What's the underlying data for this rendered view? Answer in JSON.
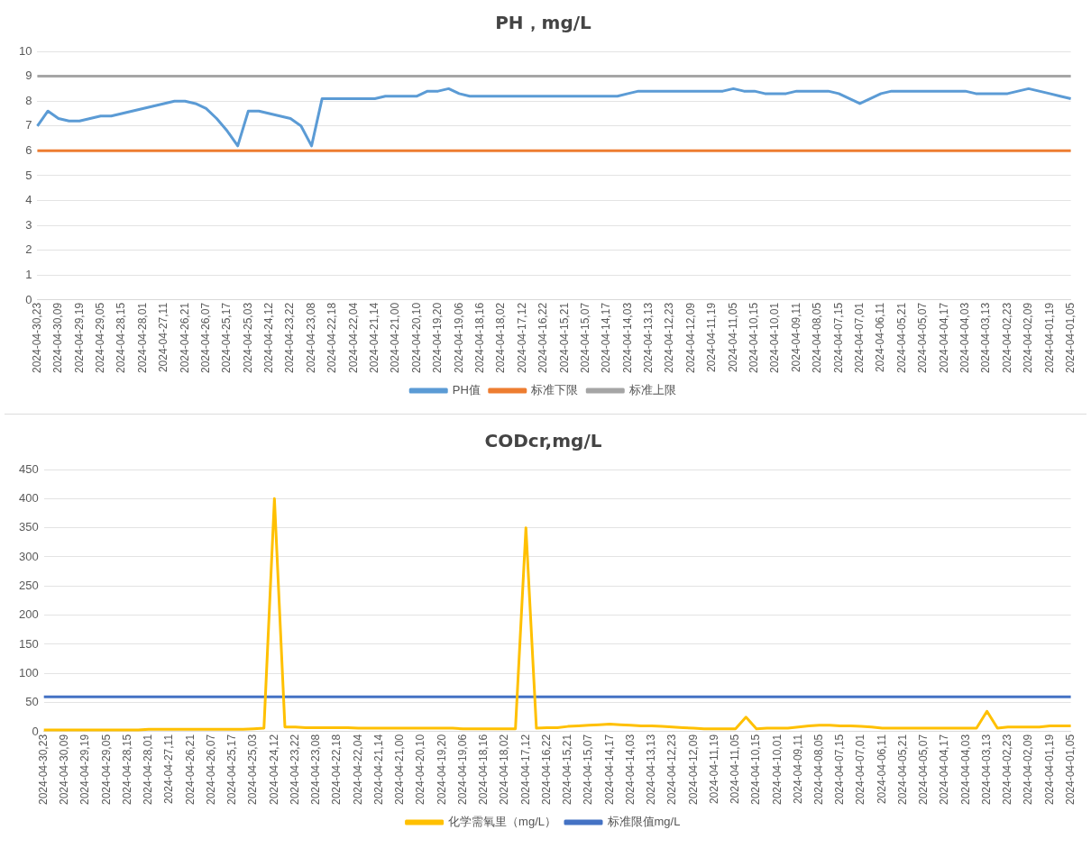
{
  "chart_data": [
    {
      "type": "line",
      "title": "PH，mg/L",
      "categories": [
        "2024-04-30,23",
        null,
        "2024-04-30,09",
        null,
        "2024-04-29,19",
        null,
        "2024-04-29,05",
        null,
        "2024-04-28,15",
        null,
        "2024-04-28,01",
        null,
        "2024-04-27,11",
        null,
        "2024-04-26,21",
        null,
        "2024-04-26,07",
        null,
        "2024-04-25,17",
        null,
        "2024-04-25,03",
        null,
        "2024-04-24,12",
        null,
        "2024-04-23,22",
        null,
        "2024-04-23,08",
        null,
        "2024-04-22,18",
        null,
        "2024-04-22,04",
        null,
        "2024-04-21,14",
        null,
        "2024-04-21,00",
        null,
        "2024-04-20,10",
        null,
        "2024-04-19,20",
        null,
        "2024-04-19,06",
        null,
        "2024-04-18,16",
        null,
        "2024-04-18,02",
        null,
        "2024-04-17,12",
        null,
        "2024-04-16,22",
        null,
        "2024-04-15,21",
        null,
        "2024-04-15,07",
        null,
        "2024-04-14,17",
        null,
        "2024-04-14,03",
        null,
        "2024-04-13,13",
        null,
        "2024-04-12,23",
        null,
        "2024-04-12,09",
        null,
        "2024-04-11,19",
        null,
        "2024-04-11,05",
        null,
        "2024-04-10,15",
        null,
        "2024-04-10,01",
        null,
        "2024-04-09,11",
        null,
        "2024-04-08,05",
        null,
        "2024-04-07,15",
        null,
        "2024-04-07,01",
        null,
        "2024-04-06,11",
        null,
        "2024-04-05,21",
        null,
        "2024-04-05,07",
        null,
        "2024-04-04,17",
        null,
        "2024-04-04,03",
        null,
        "2024-04-03,13",
        null,
        "2024-04-02,23",
        null,
        "2024-04-02,09",
        null,
        "2024-04-01,19",
        null,
        "2024-04-01,05"
      ],
      "series": [
        {
          "name": "PH值",
          "color": "#5b9bd5",
          "values": [
            7.0,
            7.6,
            7.3,
            7.2,
            7.2,
            7.3,
            7.4,
            7.4,
            7.5,
            7.6,
            7.7,
            7.8,
            7.9,
            8.0,
            8.0,
            7.9,
            7.7,
            7.3,
            6.8,
            6.2,
            7.6,
            7.6,
            7.5,
            7.4,
            7.3,
            7.0,
            6.2,
            8.1,
            8.1,
            8.1,
            8.1,
            8.1,
            8.1,
            8.2,
            8.2,
            8.2,
            8.2,
            8.4,
            8.4,
            8.5,
            8.3,
            8.2,
            8.2,
            8.2,
            8.2,
            8.2,
            8.2,
            8.2,
            8.2,
            8.2,
            8.2,
            8.2,
            8.2,
            8.2,
            8.2,
            8.2,
            8.3,
            8.4,
            8.4,
            8.4,
            8.4,
            8.4,
            8.4,
            8.4,
            8.4,
            8.4,
            8.5,
            8.4,
            8.4,
            8.3,
            8.3,
            8.3,
            8.4,
            8.4,
            8.4,
            8.4,
            8.3,
            8.1,
            7.9,
            8.1,
            8.3,
            8.4,
            8.4,
            8.4,
            8.4,
            8.4,
            8.4,
            8.4,
            8.4,
            8.3,
            8.3,
            8.3,
            8.3,
            8.4,
            8.5,
            8.4,
            8.3,
            8.2,
            8.1
          ]
        },
        {
          "name": "标准下限",
          "color": "#ed7d31",
          "values": [
            6,
            6,
            6,
            6,
            6,
            6,
            6,
            6,
            6,
            6,
            6,
            6,
            6,
            6,
            6,
            6,
            6,
            6,
            6,
            6,
            6,
            6,
            6,
            6,
            6,
            6,
            6,
            6,
            6,
            6,
            6,
            6,
            6,
            6,
            6,
            6,
            6,
            6,
            6,
            6,
            6,
            6,
            6,
            6,
            6,
            6,
            6,
            6,
            6,
            6,
            6,
            6,
            6,
            6,
            6,
            6,
            6,
            6,
            6,
            6,
            6,
            6,
            6,
            6,
            6,
            6,
            6,
            6,
            6,
            6,
            6,
            6,
            6,
            6,
            6,
            6,
            6,
            6,
            6,
            6,
            6,
            6,
            6,
            6,
            6,
            6,
            6,
            6,
            6,
            6,
            6,
            6,
            6,
            6,
            6,
            6,
            6,
            6,
            6
          ]
        },
        {
          "name": "标准上限",
          "color": "#a5a5a5",
          "values": [
            9,
            9,
            9,
            9,
            9,
            9,
            9,
            9,
            9,
            9,
            9,
            9,
            9,
            9,
            9,
            9,
            9,
            9,
            9,
            9,
            9,
            9,
            9,
            9,
            9,
            9,
            9,
            9,
            9,
            9,
            9,
            9,
            9,
            9,
            9,
            9,
            9,
            9,
            9,
            9,
            9,
            9,
            9,
            9,
            9,
            9,
            9,
            9,
            9,
            9,
            9,
            9,
            9,
            9,
            9,
            9,
            9,
            9,
            9,
            9,
            9,
            9,
            9,
            9,
            9,
            9,
            9,
            9,
            9,
            9,
            9,
            9,
            9,
            9,
            9,
            9,
            9,
            9,
            9,
            9,
            9,
            9,
            9,
            9,
            9,
            9,
            9,
            9,
            9,
            9,
            9,
            9,
            9,
            9,
            9,
            9,
            9,
            9,
            9
          ]
        }
      ],
      "ylim": [
        0,
        10
      ],
      "yticks": [
        0,
        1,
        2,
        3,
        4,
        5,
        6,
        7,
        8,
        9,
        10
      ],
      "grid": "y",
      "legend": "bottom",
      "marker": "none",
      "line_style": "solid"
    },
    {
      "type": "line",
      "title": "CODcr,mg/L",
      "categories": [
        "2024-04-30,23",
        null,
        "2024-04-30,09",
        null,
        "2024-04-29,19",
        null,
        "2024-04-29,05",
        null,
        "2024-04-28,15",
        null,
        "2024-04-28,01",
        null,
        "2024-04-27,11",
        null,
        "2024-04-26,21",
        null,
        "2024-04-26,07",
        null,
        "2024-04-25,17",
        null,
        "2024-04-25,03",
        null,
        "2024-04-24,12",
        null,
        "2024-04-23,22",
        null,
        "2024-04-23,08",
        null,
        "2024-04-22,18",
        null,
        "2024-04-22,04",
        null,
        "2024-04-21,14",
        null,
        "2024-04-21,00",
        null,
        "2024-04-20,10",
        null,
        "2024-04-19,20",
        null,
        "2024-04-19,06",
        null,
        "2024-04-18,16",
        null,
        "2024-04-18,02",
        null,
        "2024-04-17,12",
        null,
        "2024-04-16,22",
        null,
        "2024-04-15,21",
        null,
        "2024-04-15,07",
        null,
        "2024-04-14,17",
        null,
        "2024-04-14,03",
        null,
        "2024-04-13,13",
        null,
        "2024-04-12,23",
        null,
        "2024-04-12,09",
        null,
        "2024-04-11,19",
        null,
        "2024-04-11,05",
        null,
        "2024-04-10,15",
        null,
        "2024-04-10,01",
        null,
        "2024-04-09,11",
        null,
        "2024-04-08,05",
        null,
        "2024-04-07,15",
        null,
        "2024-04-07,01",
        null,
        "2024-04-06,11",
        null,
        "2024-04-05,21",
        null,
        "2024-04-05,07",
        null,
        "2024-04-04,17",
        null,
        "2024-04-04,03",
        null,
        "2024-04-03,13",
        null,
        "2024-04-02,23",
        null,
        "2024-04-02,09",
        null,
        "2024-04-01,19",
        null,
        "2024-04-01,05"
      ],
      "series": [
        {
          "name": "化学需氧里（mg/L）",
          "color": "#ffc000",
          "values": [
            3,
            3,
            3,
            3,
            3,
            3,
            3,
            3,
            3,
            3,
            4,
            4,
            4,
            4,
            4,
            4,
            4,
            4,
            4,
            4,
            5,
            6,
            400,
            8,
            8,
            7,
            7,
            7,
            7,
            7,
            6,
            6,
            6,
            6,
            6,
            6,
            6,
            6,
            6,
            6,
            5,
            5,
            5,
            5,
            5,
            5,
            350,
            6,
            7,
            7,
            9,
            10,
            11,
            12,
            13,
            12,
            11,
            10,
            10,
            9,
            8,
            7,
            6,
            5,
            5,
            5,
            5,
            25,
            5,
            6,
            6,
            6,
            8,
            10,
            11,
            11,
            10,
            10,
            9,
            8,
            6,
            6,
            6,
            6,
            6,
            6,
            6,
            6,
            6,
            6,
            35,
            6,
            8,
            8,
            8,
            8,
            10,
            10,
            10
          ]
        },
        {
          "name": "标准限值mg/L",
          "color": "#4472c4",
          "values": [
            60,
            60,
            60,
            60,
            60,
            60,
            60,
            60,
            60,
            60,
            60,
            60,
            60,
            60,
            60,
            60,
            60,
            60,
            60,
            60,
            60,
            60,
            60,
            60,
            60,
            60,
            60,
            60,
            60,
            60,
            60,
            60,
            60,
            60,
            60,
            60,
            60,
            60,
            60,
            60,
            60,
            60,
            60,
            60,
            60,
            60,
            60,
            60,
            60,
            60,
            60,
            60,
            60,
            60,
            60,
            60,
            60,
            60,
            60,
            60,
            60,
            60,
            60,
            60,
            60,
            60,
            60,
            60,
            60,
            60,
            60,
            60,
            60,
            60,
            60,
            60,
            60,
            60,
            60,
            60,
            60,
            60,
            60,
            60,
            60,
            60,
            60,
            60,
            60,
            60,
            60,
            60,
            60,
            60,
            60,
            60,
            60,
            60,
            60
          ]
        }
      ],
      "ylim": [
        0,
        450
      ],
      "yticks": [
        0,
        50,
        100,
        150,
        200,
        250,
        300,
        350,
        400,
        450
      ],
      "grid": "y",
      "legend": "bottom",
      "marker": "none",
      "line_style": "solid"
    }
  ]
}
